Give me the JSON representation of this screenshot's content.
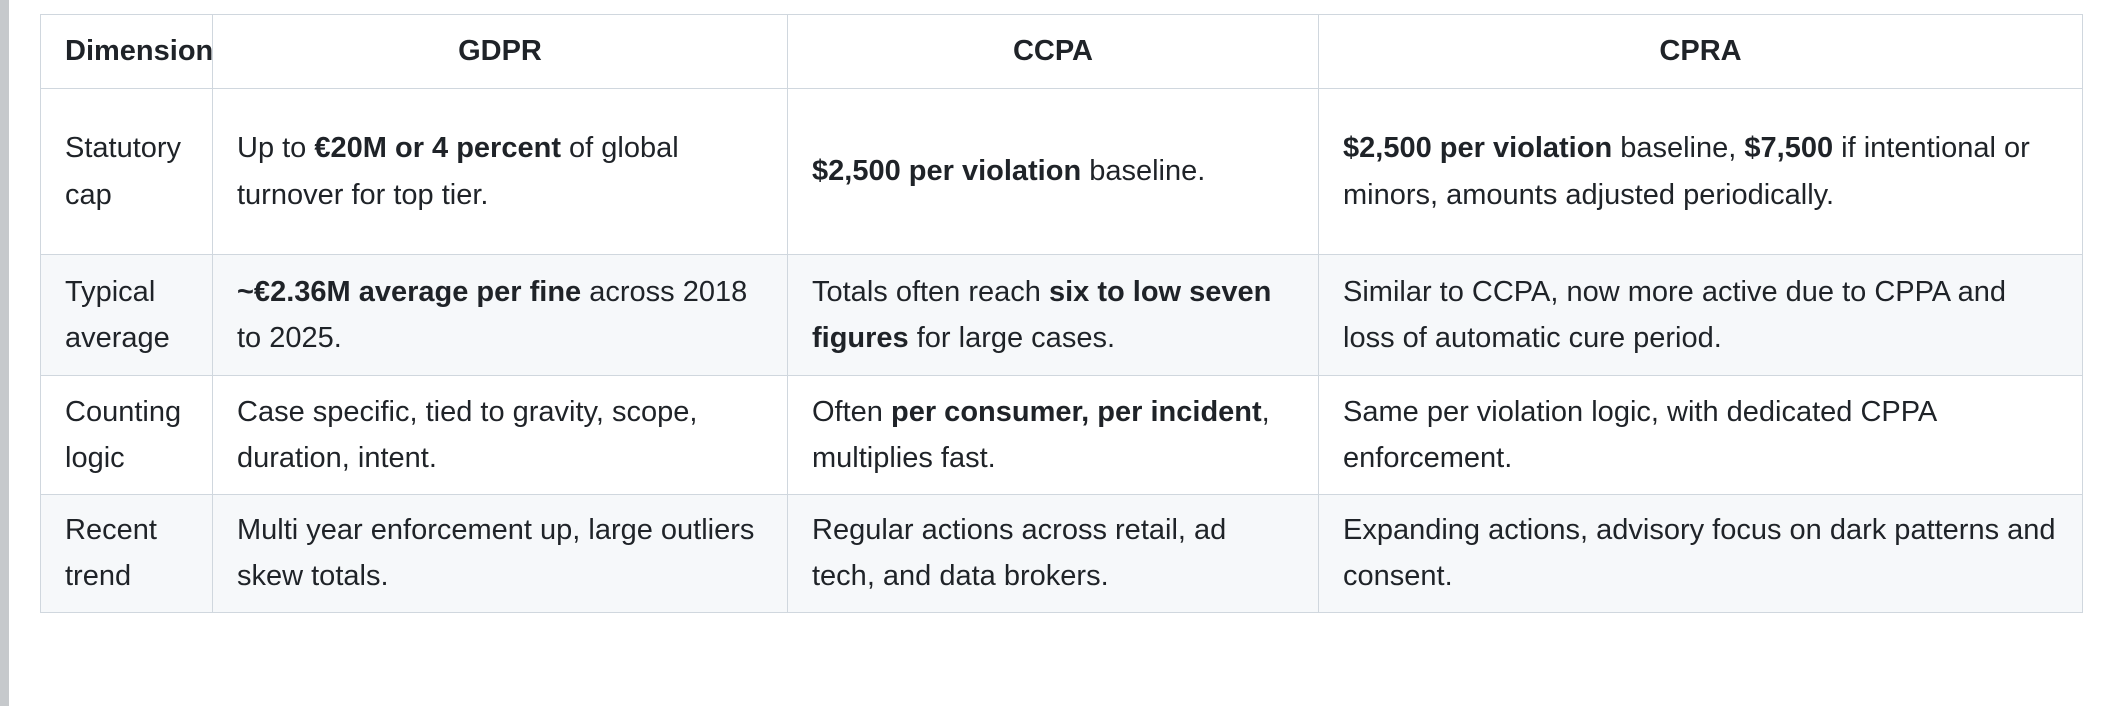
{
  "colors": {
    "text": "#1f2328",
    "table_border": "#d0d7de",
    "row_stripe": "#f6f8fa",
    "background": "#ffffff",
    "edge_strip": "#c6c9cc"
  },
  "table": {
    "headers": [
      "Dimension",
      "GDPR",
      "CCPA",
      "CPRA"
    ],
    "rows": [
      {
        "cells": [
          [
            {
              "text": "Statutory cap",
              "bold": false
            }
          ],
          [
            {
              "text": "Up to ",
              "bold": false
            },
            {
              "text": "€20M or 4 percent",
              "bold": true
            },
            {
              "text": " of global turnover for top tier.",
              "bold": false
            }
          ],
          [
            {
              "text": "$2,500 per violation",
              "bold": true
            },
            {
              "text": " baseline.",
              "bold": false
            }
          ],
          [
            {
              "text": "$2,500 per violation",
              "bold": true
            },
            {
              "text": " baseline, ",
              "bold": false
            },
            {
              "text": "$7,500",
              "bold": true
            },
            {
              "text": " if intentional or minors, amounts adjusted periodically.",
              "bold": false
            }
          ]
        ]
      },
      {
        "cells": [
          [
            {
              "text": "Typical average",
              "bold": false
            }
          ],
          [
            {
              "text": "~€2.36M average per fine",
              "bold": true
            },
            {
              "text": " across 2018 to 2025.",
              "bold": false
            }
          ],
          [
            {
              "text": "Totals often reach ",
              "bold": false
            },
            {
              "text": "six to low seven figures",
              "bold": true
            },
            {
              "text": " for large cases.",
              "bold": false
            }
          ],
          [
            {
              "text": "Similar to CCPA, now more active due to CPPA and loss of automatic cure period.",
              "bold": false
            }
          ]
        ]
      },
      {
        "cells": [
          [
            {
              "text": "Counting logic",
              "bold": false
            }
          ],
          [
            {
              "text": "Case specific, tied to gravity, scope, duration, intent.",
              "bold": false
            }
          ],
          [
            {
              "text": "Often ",
              "bold": false
            },
            {
              "text": "per consumer, per incident",
              "bold": true
            },
            {
              "text": ", multiplies fast.",
              "bold": false
            }
          ],
          [
            {
              "text": "Same per violation logic, with dedicated CPPA enforcement.",
              "bold": false
            }
          ]
        ]
      },
      {
        "cells": [
          [
            {
              "text": "Recent trend",
              "bold": false
            }
          ],
          [
            {
              "text": "Multi year enforcement up, large outliers skew totals.",
              "bold": false
            }
          ],
          [
            {
              "text": "Regular actions across retail, ad tech, and data brokers.",
              "bold": false
            }
          ],
          [
            {
              "text": "Expanding actions, advisory focus on dark patterns and consent.",
              "bold": false
            }
          ]
        ]
      }
    ]
  }
}
